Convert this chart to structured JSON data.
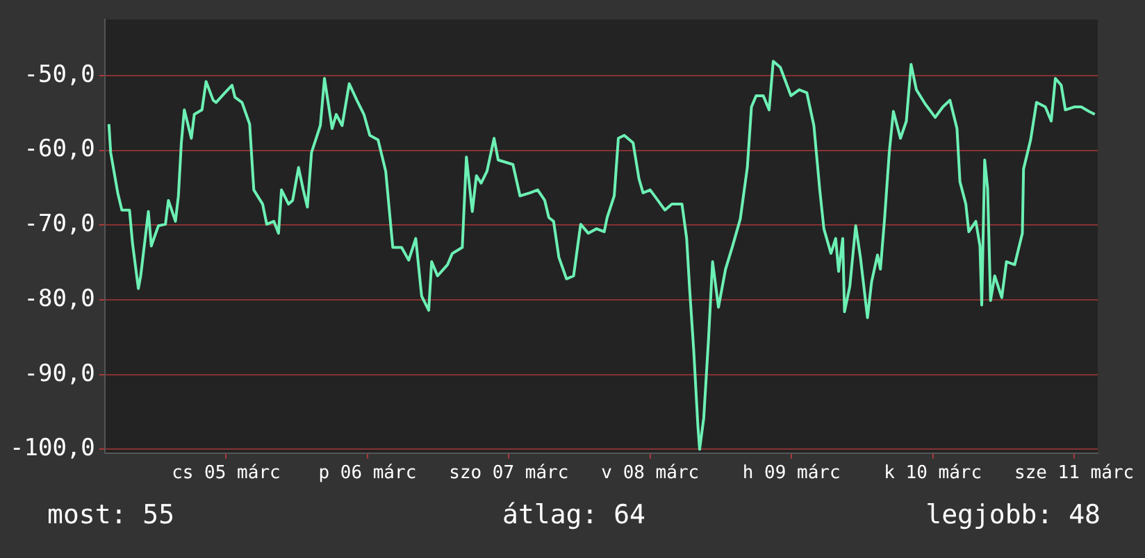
{
  "chart_data": {
    "type": "line",
    "marker": "none",
    "grid": "y",
    "legend": false,
    "xlim": [
      "--03-04T15:24",
      "--03-11T16:00"
    ],
    "xticks": [
      {
        "value": "--03-05T12:00",
        "label": "cs 05 márc"
      },
      {
        "value": "--03-06T12:00",
        "label": "p 06 márc"
      },
      {
        "value": "--03-07T12:00",
        "label": "szo 07 márc"
      },
      {
        "value": "--03-08T12:00",
        "label": "v 08 márc"
      },
      {
        "value": "--03-09T12:00",
        "label": "h 09 márc"
      },
      {
        "value": "--03-10T12:00",
        "label": "k 10 márc"
      },
      {
        "value": "--03-11T12:00",
        "label": "sze 11 márc"
      }
    ],
    "ylim": [
      -100.5,
      -42.5
    ],
    "yticks": [
      {
        "value": -100,
        "label": "-100,0"
      },
      {
        "value": -90,
        "label": "-90,0"
      },
      {
        "value": -80,
        "label": "-80,0"
      },
      {
        "value": -70,
        "label": "-70,0"
      },
      {
        "value": -60,
        "label": "-60,0"
      },
      {
        "value": -50,
        "label": "-50,0"
      }
    ],
    "annotations": [
      "most: 55",
      "átlag: 64",
      "legjobb: 48"
    ],
    "series": [
      {
        "color": "#6cf0b4",
        "x": [
          "--03-04T16:06",
          "--03-04T16:24",
          "--03-04T17:36",
          "--03-04T18:18",
          "--03-04T19:36",
          "--03-04T20:06",
          "--03-04T21:06",
          "--03-04T21:30",
          "--03-04T22:48",
          "--03-04T23:18",
          "--03-05T00:30",
          "--03-05T01:42",
          "--03-05T02:12",
          "--03-05T03:24",
          "--03-05T03:54",
          "--03-05T04:24",
          "--03-05T04:54",
          "--03-05T06:06",
          "--03-05T06:36",
          "--03-05T07:54",
          "--03-05T08:36",
          "--03-05T09:48",
          "--03-05T10:18",
          "--03-05T11:48",
          "--03-05T13:00",
          "--03-05T13:30",
          "--03-05T14:42",
          "--03-05T16:00",
          "--03-05T16:42",
          "--03-05T18:12",
          "--03-05T18:54",
          "--03-05T20:06",
          "--03-05T20:54",
          "--03-05T21:24",
          "--03-05T22:36",
          "--03-05T23:18",
          "--03-06T00:18",
          "--03-06T01:06",
          "--03-06T01:48",
          "--03-06T02:30",
          "--03-06T04:00",
          "--03-06T04:42",
          "--03-06T06:00",
          "--03-06T06:42",
          "--03-06T07:42",
          "--03-06T08:54",
          "--03-06T10:12",
          "--03-06T11:24",
          "--03-06T12:24",
          "--03-06T13:48",
          "--03-06T15:06",
          "--03-06T16:18",
          "--03-06T17:48",
          "--03-06T19:00",
          "--03-06T20:12",
          "--03-06T21:12",
          "--03-06T22:24",
          "--03-06T22:54",
          "--03-06T23:54",
          "--03-07T01:36",
          "--03-07T02:24",
          "--03-07T04:06",
          "--03-07T04:48",
          "--03-07T05:48",
          "--03-07T06:30",
          "--03-07T07:18",
          "--03-07T08:18",
          "--03-07T09:30",
          "--03-07T10:12",
          "--03-07T12:42",
          "--03-07T13:54",
          "--03-07T15:36",
          "--03-07T16:54",
          "--03-07T18:06",
          "--03-07T18:48",
          "--03-07T19:36",
          "--03-07T20:30",
          "--03-07T21:48",
          "--03-07T23:00",
          "--03-08T00:12",
          "--03-08T01:30",
          "--03-08T02:54",
          "--03-08T04:12",
          "--03-08T04:42",
          "--03-08T05:54",
          "--03-08T06:36",
          "--03-08T07:36",
          "--03-08T09:06",
          "--03-08T10:06",
          "--03-08T10:48",
          "--03-08T12:00",
          "--03-08T13:18",
          "--03-08T14:30",
          "--03-08T15:42",
          "--03-08T17:24",
          "--03-08T18:12",
          "--03-08T18:42",
          "--03-08T19:24",
          "--03-08T20:06",
          "--03-08T20:24",
          "--03-08T21:06",
          "--03-08T21:54",
          "--03-08T22:36",
          "--03-08T23:36",
          "--03-09T00:48",
          "--03-09T02:00",
          "--03-09T03:18",
          "--03-09T04:30",
          "--03-09T05:12",
          "--03-09T06:00",
          "--03-09T07:12",
          "--03-09T08:12",
          "--03-09T08:54",
          "--03-09T10:06",
          "--03-09T11:54",
          "--03-09T13:18",
          "--03-09T14:36",
          "--03-09T15:48",
          "--03-09T16:48",
          "--03-09T17:30",
          "--03-09T18:42",
          "--03-09T19:30",
          "--03-09T20:00",
          "--03-09T20:42",
          "--03-09T21:00",
          "--03-09T21:54",
          "--03-09T22:54",
          "--03-09T23:42",
          "--03-10T00:54",
          "--03-10T01:36",
          "--03-10T02:36",
          "--03-10T03:06",
          "--03-10T03:48",
          "--03-10T04:36",
          "--03-10T05:18",
          "--03-10T06:30",
          "--03-10T07:30",
          "--03-10T08:18",
          "--03-10T09:12",
          "--03-10T10:42",
          "--03-10T12:24",
          "--03-10T13:42",
          "--03-10T14:54",
          "--03-10T16:06",
          "--03-10T16:36",
          "--03-10T17:36",
          "--03-10T18:06",
          "--03-10T19:18",
          "--03-10T20:00",
          "--03-10T20:18",
          "--03-10T20:48",
          "--03-10T21:18",
          "--03-10T21:48",
          "--03-10T22:30",
          "--03-10T23:42",
          "--03-11T00:30",
          "--03-11T01:54",
          "--03-11T03:12",
          "--03-11T03:24",
          "--03-11T04:36",
          "--03-11T05:36",
          "--03-11T07:06",
          "--03-11T08:06",
          "--03-11T08:48",
          "--03-11T09:48",
          "--03-11T10:30",
          "--03-11T12:00",
          "--03-11T13:12",
          "--03-11T14:30",
          "--03-11T15:30"
        ],
        "values": [
          -56.5,
          -60.3,
          -65.7,
          -68.0,
          -68.0,
          -72.4,
          -78.5,
          -76.8,
          -68.2,
          -72.8,
          -70.1,
          -69.9,
          -66.7,
          -69.5,
          -66.1,
          -59.0,
          -54.6,
          -58.4,
          -55.2,
          -54.6,
          -50.8,
          -53.3,
          -53.6,
          -52.3,
          -51.3,
          -52.9,
          -53.6,
          -56.5,
          -65.3,
          -67.2,
          -69.9,
          -69.5,
          -71.1,
          -65.3,
          -67.2,
          -66.7,
          -62.3,
          -65.3,
          -67.6,
          -60.3,
          -56.7,
          -50.4,
          -57.1,
          -55.2,
          -56.7,
          -51.1,
          -53.3,
          -55.2,
          -58.0,
          -58.6,
          -62.8,
          -73.0,
          -73.0,
          -74.7,
          -71.8,
          -79.5,
          -81.4,
          -74.9,
          -76.8,
          -75.3,
          -73.8,
          -73.0,
          -60.9,
          -68.2,
          -63.4,
          -64.4,
          -62.8,
          -58.4,
          -61.3,
          -61.9,
          -66.1,
          -65.7,
          -65.3,
          -66.7,
          -69.0,
          -69.5,
          -74.3,
          -77.2,
          -76.8,
          -69.9,
          -71.1,
          -70.5,
          -70.9,
          -69.0,
          -66.1,
          -58.4,
          -58.0,
          -59.0,
          -63.8,
          -65.7,
          -65.3,
          -66.7,
          -68.0,
          -67.2,
          -67.2,
          -71.8,
          -78.5,
          -86.8,
          -96.8,
          -100.0,
          -95.8,
          -85.4,
          -74.9,
          -81.0,
          -75.9,
          -72.8,
          -69.2,
          -62.3,
          -54.2,
          -52.7,
          -52.7,
          -54.6,
          -48.1,
          -48.9,
          -52.7,
          -51.9,
          -52.3,
          -56.7,
          -65.3,
          -70.5,
          -73.8,
          -71.8,
          -76.2,
          -71.8,
          -81.6,
          -78.2,
          -70.1,
          -74.3,
          -82.4,
          -77.6,
          -74.0,
          -75.9,
          -69.2,
          -60.3,
          -54.8,
          -58.4,
          -56.1,
          -48.5,
          -51.9,
          -53.8,
          -55.6,
          -54.2,
          -53.3,
          -57.1,
          -64.2,
          -67.2,
          -70.9,
          -69.5,
          -72.8,
          -80.7,
          -61.3,
          -65.1,
          -80.1,
          -76.8,
          -79.7,
          -74.9,
          -75.3,
          -71.1,
          -62.5,
          -58.6,
          -53.6,
          -54.2,
          -56.1,
          -50.4,
          -51.3,
          -54.6,
          -54.2,
          -54.2,
          -54.8,
          -55.2
        ]
      }
    ]
  }
}
